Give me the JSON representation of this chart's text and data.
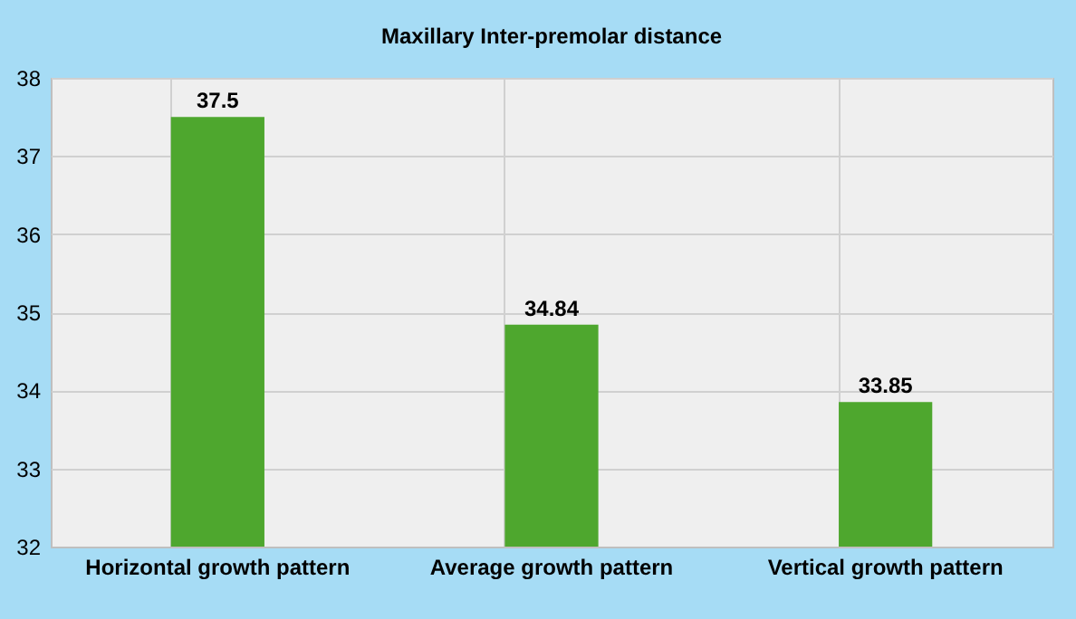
{
  "chart_data": {
    "type": "bar",
    "title": "Maxillary Inter-premolar distance",
    "categories": [
      "Horizontal growth pattern",
      "Average growth pattern",
      "Vertical growth pattern"
    ],
    "values": [
      37.5,
      34.84,
      33.85
    ],
    "color": "#4ea72e",
    "ylim": [
      32,
      38
    ],
    "yticks": [
      32,
      33,
      34,
      35,
      36,
      37,
      38
    ],
    "grid": true,
    "data_labels": true
  }
}
